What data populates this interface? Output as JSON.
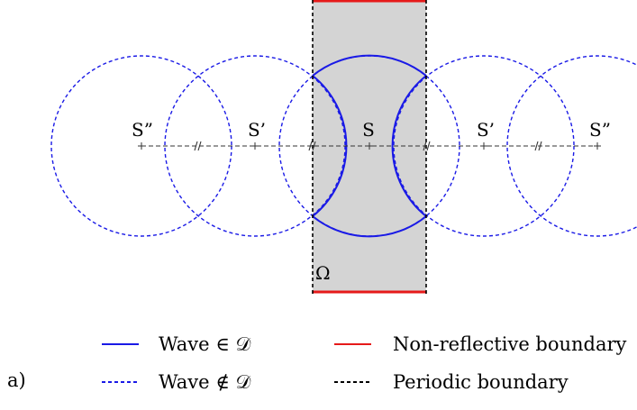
{
  "diagram": {
    "sources": [
      {
        "id": "S-left-2",
        "label": "S”",
        "kind": "virtual"
      },
      {
        "id": "S-left-1",
        "label": "S’",
        "kind": "virtual"
      },
      {
        "id": "S-center",
        "label": "S",
        "kind": "real"
      },
      {
        "id": "S-right-1",
        "label": "S’",
        "kind": "virtual"
      },
      {
        "id": "S-right-2",
        "label": "S”",
        "kind": "virtual"
      }
    ],
    "domain_label": "Ω",
    "panel_label": "a)"
  },
  "legend": {
    "wave_in_domain": "Wave ∈ 𝒟",
    "wave_not_in_domain": "Wave ∉ 𝒟",
    "non_reflective_boundary": "Non-reflective boundary",
    "periodic_boundary": "Periodic boundary"
  },
  "colors": {
    "wave": "#1a1ae6",
    "non_reflective": "#e61a1a",
    "periodic": "#000000",
    "domain_fill": "#d4d4d4"
  }
}
